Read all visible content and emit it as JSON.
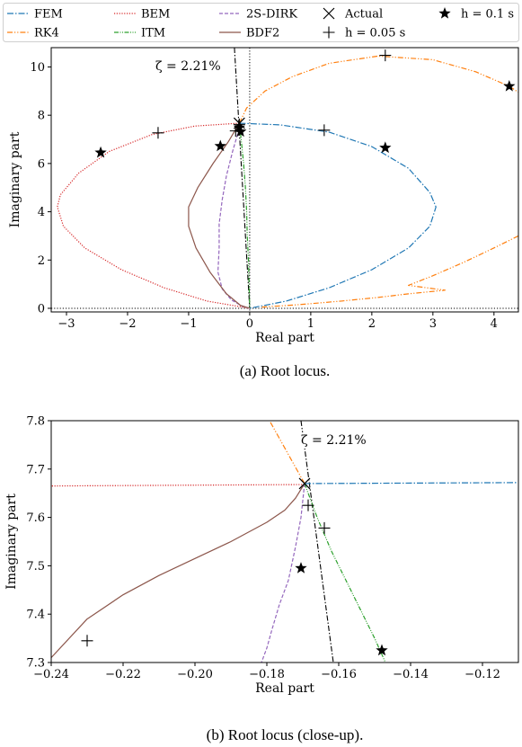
{
  "legend": {
    "items": [
      {
        "key": "FEM",
        "label": "FEM",
        "color": "#1f77b4",
        "dash": "7,2,1.5,2"
      },
      {
        "key": "BEM",
        "label": "BEM",
        "color": "#d62728",
        "dash": "1.2,1.6"
      },
      {
        "key": "2S-DIRK",
        "label": "2S-DIRK",
        "color": "#9467bd",
        "dash": "4,2"
      },
      {
        "key": "Actual",
        "label": "Actual",
        "marker": "x"
      },
      {
        "key": "h01",
        "label": "h = 0.1 s",
        "marker": "star"
      },
      {
        "key": "RK4",
        "label": "RK4",
        "color": "#ff7f0e",
        "dash": "6,2,1.2,2,1.2,2"
      },
      {
        "key": "ITM",
        "label": "ITM",
        "color": "#2ca02c",
        "dash": "5,1.5,1,1.5,1,1.5"
      },
      {
        "key": "BDF2",
        "label": "BDF2",
        "color": "#8c564b",
        "dash": ""
      },
      {
        "key": "h005",
        "label": "h = 0.05 s",
        "marker": "plus"
      }
    ]
  },
  "chart_data": [
    {
      "type": "line",
      "xlabel": "Real part",
      "ylabel": "Imaginary part",
      "xlim": [
        -3.25,
        4.4
      ],
      "ylim": [
        -0.15,
        10.8
      ],
      "xticks": [
        -3,
        -2,
        -1,
        0,
        1,
        2,
        3,
        4
      ],
      "yticks": [
        0,
        2,
        4,
        6,
        8,
        10
      ],
      "annotation": "ζ = 2.21%",
      "caption": "(a) Root locus.",
      "series": [
        {
          "name": "FEM",
          "points": [
            [
              -0.17,
              7.67
            ],
            [
              0.5,
              7.6
            ],
            [
              1.3,
              7.3
            ],
            [
              2.0,
              6.7
            ],
            [
              2.6,
              5.8
            ],
            [
              2.95,
              4.8
            ],
            [
              3.05,
              4.2
            ],
            [
              2.95,
              3.4
            ],
            [
              2.6,
              2.5
            ],
            [
              2.0,
              1.6
            ],
            [
              1.3,
              0.85
            ],
            [
              0.6,
              0.3
            ],
            [
              0.0,
              0.0
            ]
          ]
        },
        {
          "name": "BEM",
          "points": [
            [
              -0.17,
              7.67
            ],
            [
              -0.9,
              7.55
            ],
            [
              -1.6,
              7.2
            ],
            [
              -2.3,
              6.5
            ],
            [
              -2.8,
              5.6
            ],
            [
              -3.1,
              4.7
            ],
            [
              -3.15,
              4.2
            ],
            [
              -3.05,
              3.4
            ],
            [
              -2.7,
              2.5
            ],
            [
              -2.1,
              1.6
            ],
            [
              -1.4,
              0.85
            ],
            [
              -0.7,
              0.3
            ],
            [
              0.0,
              0.0
            ]
          ]
        },
        {
          "name": "RK4",
          "points": [
            [
              -0.17,
              7.67
            ],
            [
              -0.05,
              8.3
            ],
            [
              0.25,
              9.0
            ],
            [
              0.7,
              9.6
            ],
            [
              1.3,
              10.15
            ],
            [
              2.1,
              10.45
            ],
            [
              3.0,
              10.3
            ],
            [
              3.7,
              9.8
            ],
            [
              4.25,
              9.2
            ],
            [
              4.4,
              8.95
            ]
          ]
        },
        {
          "name": "RK4",
          "points": [
            [
              4.4,
              3.0
            ],
            [
              4.0,
              2.5
            ],
            [
              3.5,
              1.9
            ],
            [
              3.0,
              1.35
            ],
            [
              2.6,
              0.95
            ],
            [
              3.2,
              0.75
            ],
            [
              2.6,
              0.6
            ],
            [
              2.1,
              0.45
            ],
            [
              1.5,
              0.3
            ],
            [
              0.8,
              0.15
            ],
            [
              0.2,
              0.05
            ]
          ]
        },
        {
          "name": "2S-DIRK",
          "points": [
            [
              -0.17,
              7.67
            ],
            [
              -0.2,
              7.2
            ],
            [
              -0.28,
              6.5
            ],
            [
              -0.38,
              5.5
            ],
            [
              -0.45,
              4.5
            ],
            [
              -0.5,
              3.5
            ],
            [
              -0.5,
              2.5
            ],
            [
              -0.52,
              1.5
            ],
            [
              -0.45,
              0.8
            ],
            [
              -0.3,
              0.35
            ],
            [
              -0.12,
              0.08
            ],
            [
              0.0,
              0.0
            ]
          ]
        },
        {
          "name": "ITM",
          "points": [
            [
              -0.17,
              7.67
            ],
            [
              -0.14,
              7.0
            ],
            [
              -0.1,
              6.0
            ],
            [
              -0.07,
              5.0
            ],
            [
              -0.05,
              4.0
            ],
            [
              -0.04,
              3.0
            ],
            [
              -0.02,
              2.0
            ],
            [
              -0.01,
              1.0
            ],
            [
              0.0,
              0.0
            ]
          ]
        },
        {
          "name": "BDF2",
          "points": [
            [
              -0.17,
              7.67
            ],
            [
              -0.35,
              6.9
            ],
            [
              -0.6,
              6.0
            ],
            [
              -0.85,
              5.0
            ],
            [
              -1.0,
              4.2
            ],
            [
              -1.0,
              3.4
            ],
            [
              -0.88,
              2.5
            ],
            [
              -0.65,
              1.5
            ],
            [
              -0.38,
              0.6
            ],
            [
              -0.15,
              0.12
            ],
            [
              0.0,
              0.0
            ]
          ]
        }
      ],
      "zeta_line": [
        [
          -0.25,
          10.8
        ],
        [
          0.0,
          0.0
        ]
      ],
      "markers": {
        "actual": [
          [
            -0.17,
            7.67
          ]
        ],
        "h01": [
          [
            -2.44,
            6.45
          ],
          [
            2.22,
            6.65
          ],
          [
            -0.48,
            6.72
          ],
          [
            -0.17,
            7.49
          ],
          [
            -0.15,
            7.32
          ],
          [
            4.25,
            9.2
          ]
        ],
        "h005": [
          [
            -1.5,
            7.27
          ],
          [
            1.22,
            7.38
          ],
          [
            -0.23,
            7.35
          ],
          [
            -0.17,
            7.62
          ],
          [
            2.22,
            10.48
          ]
        ]
      }
    },
    {
      "type": "line",
      "xlabel": "Real part",
      "ylabel": "Imaginary part",
      "xlim": [
        -0.24,
        -0.11
      ],
      "ylim": [
        7.3,
        7.8
      ],
      "xticks": [
        -0.24,
        -0.22,
        -0.2,
        -0.18,
        -0.16,
        -0.14,
        -0.12
      ],
      "xticklabels": [
        "−0.24",
        "−0.22",
        "−0.20",
        "−0.18",
        "−0.16",
        "−0.14",
        "−0.12"
      ],
      "yticks": [
        7.3,
        7.4,
        7.5,
        7.6,
        7.7,
        7.8
      ],
      "yticklabels": [
        "7.3",
        "7.4",
        "7.5",
        "7.6",
        "7.7",
        "7.8"
      ],
      "annotation": "ζ = 2.21%",
      "caption": "(b) Root locus (close-up).",
      "series": [
        {
          "name": "FEM",
          "points": [
            [
              -0.1695,
              7.67
            ],
            [
              -0.11,
              7.672
            ]
          ]
        },
        {
          "name": "BEM",
          "points": [
            [
              -0.1695,
              7.668
            ],
            [
              -0.24,
              7.665
            ]
          ]
        },
        {
          "name": "RK4",
          "points": [
            [
              -0.1695,
              7.67
            ],
            [
              -0.18,
              7.81
            ]
          ]
        },
        {
          "name": "BDF2",
          "points": [
            [
              -0.1695,
              7.67
            ],
            [
              -0.172,
              7.64
            ],
            [
              -0.175,
              7.615
            ],
            [
              -0.18,
              7.59
            ],
            [
              -0.19,
              7.55
            ],
            [
              -0.2,
              7.515
            ],
            [
              -0.21,
              7.48
            ],
            [
              -0.22,
              7.44
            ],
            [
              -0.23,
              7.39
            ],
            [
              -0.24,
              7.31
            ]
          ]
        },
        {
          "name": "2S-DIRK",
          "points": [
            [
              -0.1695,
              7.67
            ],
            [
              -0.1705,
              7.6
            ],
            [
              -0.172,
              7.54
            ],
            [
              -0.174,
              7.47
            ],
            [
              -0.1765,
              7.42
            ],
            [
              -0.1785,
              7.37
            ],
            [
              -0.18,
              7.33
            ],
            [
              -0.1815,
              7.3
            ]
          ]
        },
        {
          "name": "ITM",
          "points": [
            [
              -0.1695,
              7.67
            ],
            [
              -0.166,
              7.6
            ],
            [
              -0.162,
              7.53
            ],
            [
              -0.158,
              7.47
            ],
            [
              -0.154,
              7.41
            ],
            [
              -0.15,
              7.35
            ],
            [
              -0.147,
              7.3
            ]
          ]
        }
      ],
      "zeta_line": [
        [
          -0.1705,
          7.8
        ],
        [
          -0.1615,
          7.3
        ]
      ],
      "markers": {
        "actual": [
          [
            -0.1695,
            7.67
          ]
        ],
        "h01": [
          [
            -0.1705,
            7.495
          ],
          [
            -0.148,
            7.325
          ]
        ],
        "h005": [
          [
            -0.1685,
            7.625
          ],
          [
            -0.164,
            7.578
          ],
          [
            -0.23,
            7.345
          ]
        ]
      }
    }
  ]
}
